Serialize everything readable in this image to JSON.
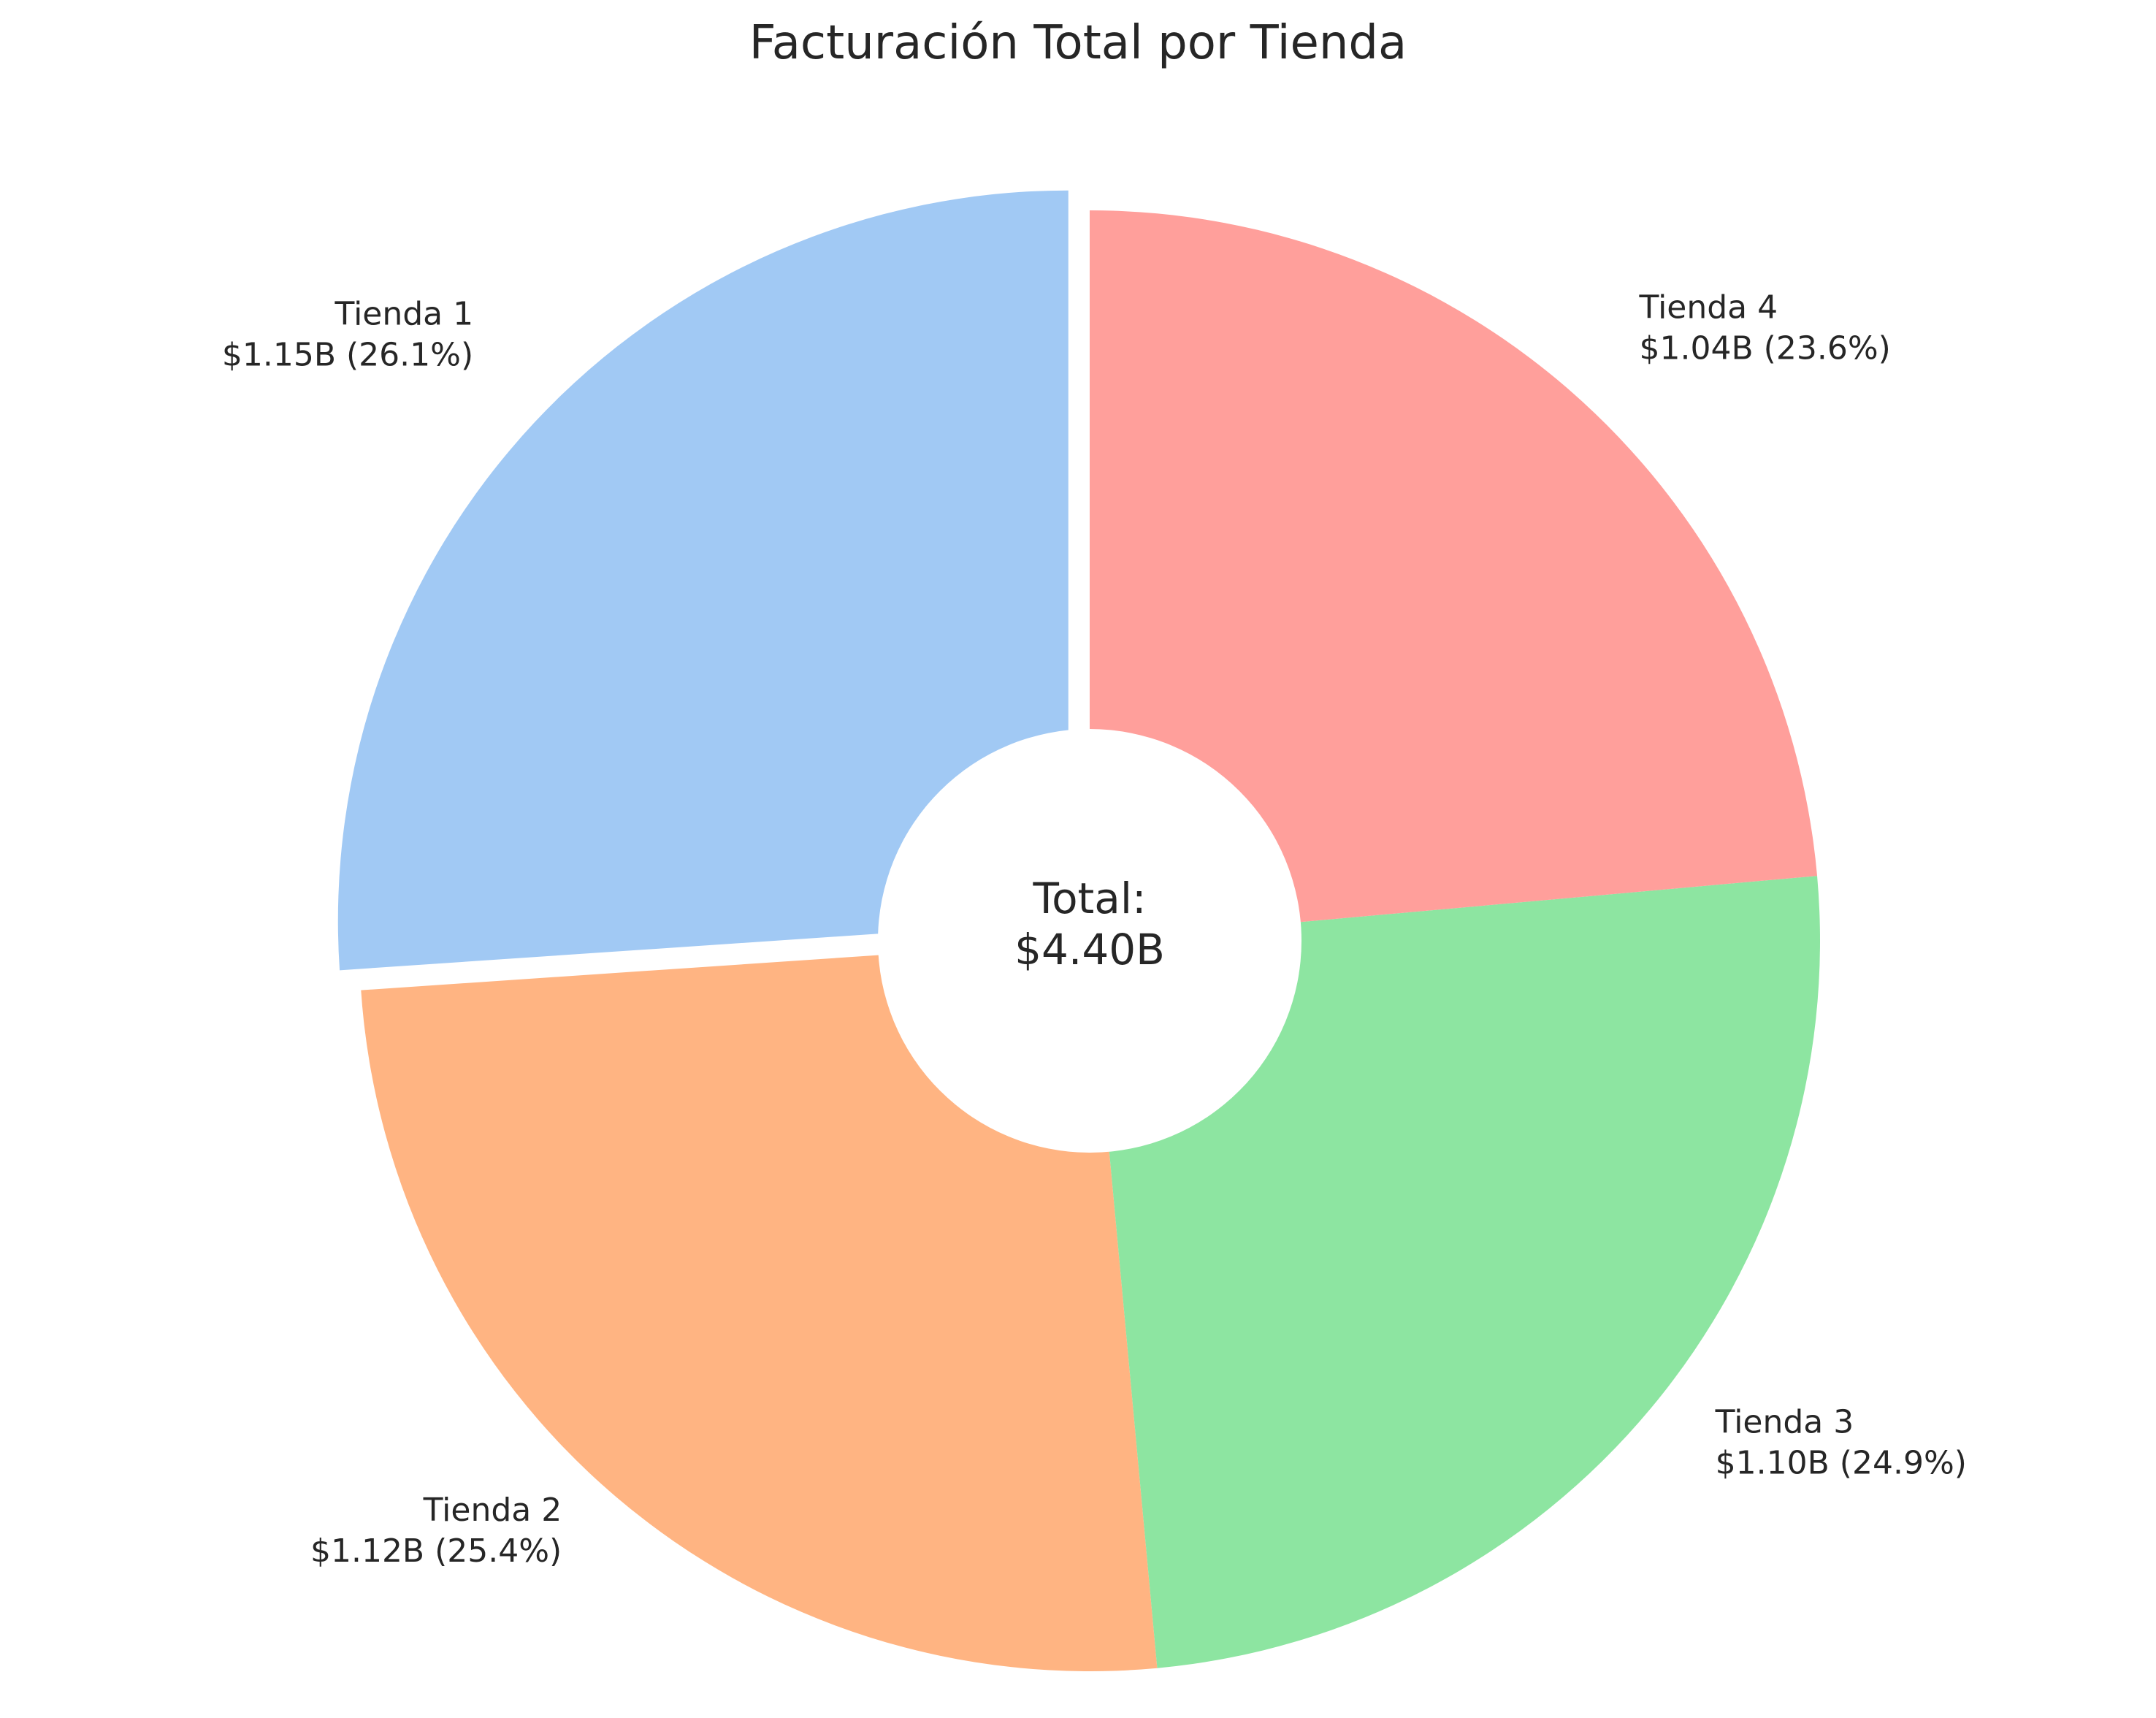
{
  "chart_data": {
    "type": "pie",
    "title": "Facturación Total por Tienda",
    "categories": [
      "Tienda 1",
      "Tienda 2",
      "Tienda 3",
      "Tienda 4"
    ],
    "values": [
      1.15,
      1.12,
      1.1,
      1.04
    ],
    "unit": "B",
    "labels": [
      {
        "name": "Tienda 1",
        "value_text": "$1.15B (26.1%)"
      },
      {
        "name": "Tienda 2",
        "value_text": "$1.12B (25.4%)"
      },
      {
        "name": "Tienda 3",
        "value_text": "$1.10B (24.9%)"
      },
      {
        "name": "Tienda 4",
        "value_text": "$1.04B (23.6%)"
      }
    ],
    "percentages": [
      26.1,
      25.4,
      24.9,
      23.6
    ],
    "colors": [
      "#a1c9f4",
      "#ffb482",
      "#8de5a1",
      "#ff9f9b"
    ],
    "center_label": {
      "line1": "Total:",
      "line2": "$4.40B"
    },
    "start_angle_deg": 90,
    "direction": "counterclockwise",
    "donut": true,
    "exploded": [
      "Tienda 1"
    ]
  }
}
